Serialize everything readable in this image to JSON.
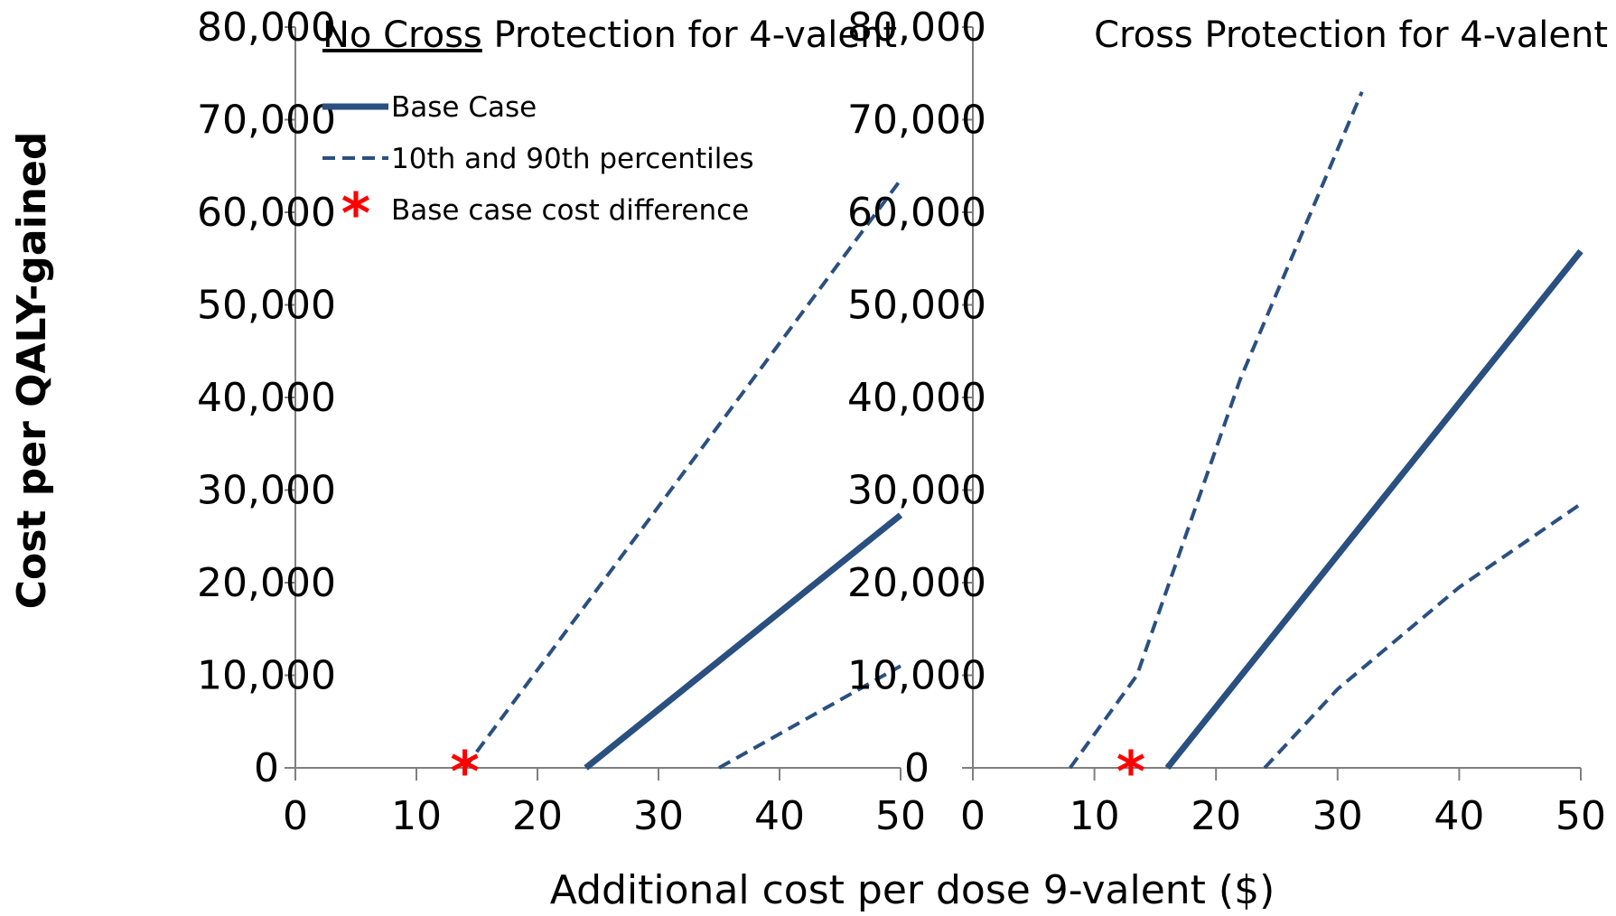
{
  "figure": {
    "ylabel": "Cost per QALY-gained",
    "xlabel": "Additional cost per dose 9-valent ($)"
  },
  "legend": {
    "items": [
      {
        "label": "Base Case",
        "style": "solid"
      },
      {
        "label": "10th and 90th percentiles",
        "style": "dashed"
      },
      {
        "label": "Base case cost difference",
        "style": "star"
      }
    ]
  },
  "colors": {
    "line": "#2a5080",
    "star": "#ff0000"
  },
  "chart_data": [
    {
      "type": "line",
      "title_underlined": "No Cross",
      "title_rest": " Protection for 4-valent",
      "xlim": [
        0,
        50
      ],
      "ylim": [
        0,
        80000
      ],
      "xticks": [
        "0",
        "10",
        "20",
        "30",
        "40",
        "50"
      ],
      "yticks": [
        "0",
        "10,000",
        "20,000",
        "30,000",
        "40,000",
        "50,000",
        "60,000",
        "70,000",
        "80,000"
      ],
      "series": [
        {
          "name": "Base Case",
          "style": "solid",
          "x": [
            24,
            50
          ],
          "y": [
            0,
            27300
          ]
        },
        {
          "name": "10th and 90th percentiles",
          "style": "dashed",
          "x": [
            14,
            50
          ],
          "y": [
            0,
            63500
          ]
        },
        {
          "name": "10th and 90th percentiles",
          "style": "dashed",
          "x": [
            35,
            50
          ],
          "y": [
            0,
            11000
          ]
        }
      ],
      "markers": [
        {
          "name": "Base case cost difference",
          "x": 14,
          "y": 0
        }
      ]
    },
    {
      "type": "line",
      "title_underlined": "",
      "title_rest": "Cross Protection for 4-valent",
      "xlim": [
        0,
        50
      ],
      "ylim": [
        0,
        80000
      ],
      "xticks": [
        "0",
        "10",
        "20",
        "30",
        "40",
        "50"
      ],
      "yticks": [
        "0",
        "10,000",
        "20,000",
        "30,000",
        "40,000",
        "50,000",
        "60,000",
        "70,000",
        "80,000"
      ],
      "series": [
        {
          "name": "Base Case",
          "style": "solid",
          "x": [
            16,
            50
          ],
          "y": [
            0,
            55800
          ]
        },
        {
          "name": "10th and 90th percentiles",
          "style": "dashed",
          "x": [
            8,
            13.5,
            22,
            32
          ],
          "y": [
            0,
            10000,
            42000,
            73000
          ]
        },
        {
          "name": "10th and 90th percentiles",
          "style": "dashed",
          "x": [
            24,
            30,
            40,
            50
          ],
          "y": [
            0,
            8500,
            19500,
            28500
          ]
        }
      ],
      "markers": [
        {
          "name": "Base case cost difference",
          "x": 13,
          "y": 0
        }
      ]
    }
  ]
}
